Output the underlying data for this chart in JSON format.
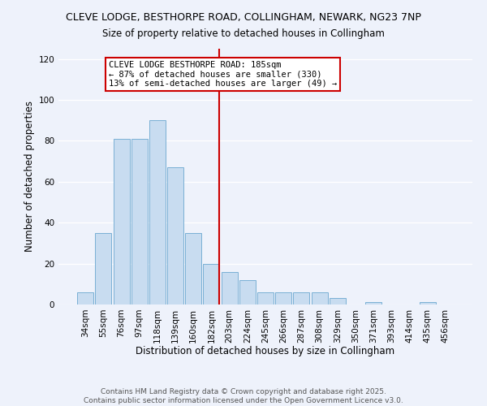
{
  "title": "CLEVE LODGE, BESTHORPE ROAD, COLLINGHAM, NEWARK, NG23 7NP",
  "subtitle": "Size of property relative to detached houses in Collingham",
  "xlabel": "Distribution of detached houses by size in Collingham",
  "ylabel": "Number of detached properties",
  "categories": [
    "34sqm",
    "55sqm",
    "76sqm",
    "97sqm",
    "118sqm",
    "139sqm",
    "160sqm",
    "182sqm",
    "203sqm",
    "224sqm",
    "245sqm",
    "266sqm",
    "287sqm",
    "308sqm",
    "329sqm",
    "350sqm",
    "371sqm",
    "393sqm",
    "414sqm",
    "435sqm",
    "456sqm"
  ],
  "values": [
    6,
    35,
    81,
    81,
    90,
    67,
    35,
    20,
    16,
    12,
    6,
    6,
    6,
    6,
    3,
    0,
    1,
    0,
    0,
    1,
    0
  ],
  "bar_color": "#c8dcf0",
  "bar_edge_color": "#7ab0d4",
  "vline_x_index": 7,
  "vline_color": "#cc0000",
  "annotation_text": "CLEVE LODGE BESTHORPE ROAD: 185sqm\n← 87% of detached houses are smaller (330)\n13% of semi-detached houses are larger (49) →",
  "annotation_box_color": "#ffffff",
  "annotation_box_edge_color": "#cc0000",
  "ylim": [
    0,
    125
  ],
  "yticks": [
    0,
    20,
    40,
    60,
    80,
    100,
    120
  ],
  "footer1": "Contains HM Land Registry data © Crown copyright and database right 2025.",
  "footer2": "Contains public sector information licensed under the Open Government Licence v3.0.",
  "background_color": "#eef2fb",
  "title_fontsize": 9,
  "axis_label_fontsize": 8.5,
  "tick_fontsize": 7.5,
  "annotation_fontsize": 7.5,
  "footer_fontsize": 6.5
}
